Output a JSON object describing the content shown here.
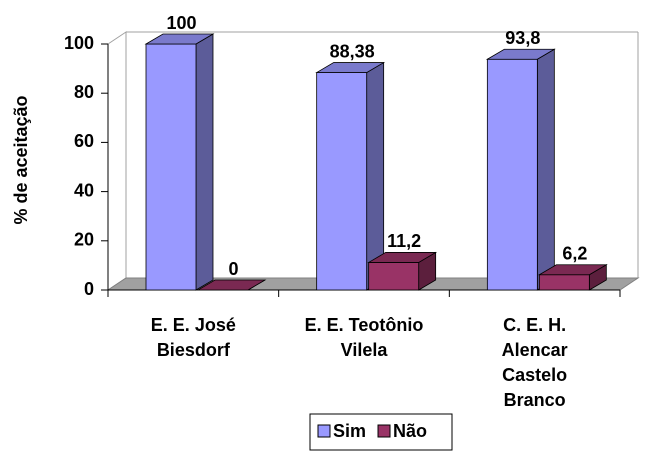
{
  "chart_data": {
    "type": "bar3d",
    "categories": [
      "E. E. José\nBiesdorf",
      "E. E. Teotônio\nVilela",
      "C. E. H.\nAlencar\nCastelo\nBranco"
    ],
    "series": [
      {
        "name": "Sim",
        "color": "#9999ff",
        "values": [
          100,
          88.38,
          93.8
        ],
        "value_labels": [
          "100",
          "88,38",
          "93,8"
        ]
      },
      {
        "name": "Não",
        "color": "#993366",
        "values": [
          0,
          11.2,
          6.2
        ],
        "value_labels": [
          "0",
          "11,2",
          "6,2"
        ]
      }
    ],
    "ylabel": "% de aceitação",
    "ylim": [
      0,
      100
    ],
    "yticks": [
      0,
      20,
      40,
      60,
      80,
      100
    ],
    "legend": "bottom"
  }
}
